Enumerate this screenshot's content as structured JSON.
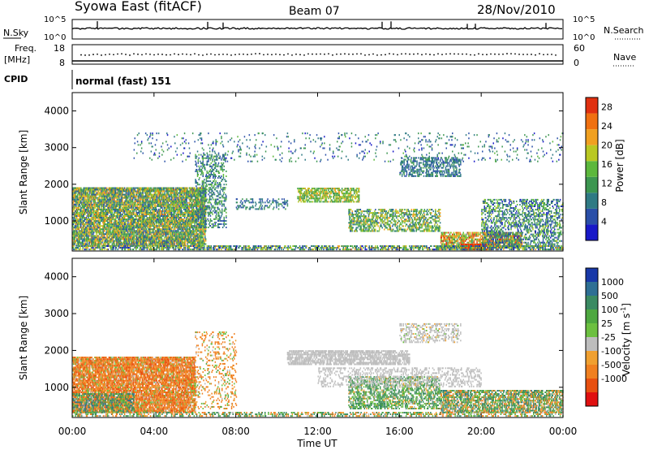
{
  "header": {
    "station": "Syowa East (fitACF)",
    "beam": "Beam 07",
    "date": "28/Nov/2010"
  },
  "sky_panel": {
    "left_label": "N.Sky",
    "right_label": "N.Search",
    "left_ticks": [
      "10^5",
      "10^0"
    ],
    "right_ticks": [
      "10^5",
      "10^0"
    ]
  },
  "freq_panel": {
    "label_1": "Freq.",
    "label_2": "[MHz]",
    "left_ticks": [
      "18",
      "8"
    ],
    "right_ticks": [
      "60",
      "0"
    ],
    "right_label": "Nave"
  },
  "cpid_panel": {
    "label": "CPID",
    "text": "normal (fast) 151"
  },
  "x_axis": {
    "title": "Time UT",
    "ticks": [
      "00:00",
      "04:00",
      "08:00",
      "12:00",
      "16:00",
      "20:00",
      "00:00"
    ]
  },
  "colors": {
    "power": [
      "#1818c8",
      "#2a4fa8",
      "#2f7a84",
      "#3c9650",
      "#5cb83c",
      "#b9c822",
      "#f0a020",
      "#f07010",
      "#e03010"
    ],
    "velocity_pos": [
      "#1838a8",
      "#2e6f94",
      "#3a8a62",
      "#4ea840",
      "#6cc040"
    ],
    "velocity_neutral": "#bdbdbd",
    "velocity_neg": [
      "#f0a030",
      "#f08020",
      "#e85010",
      "#e01010"
    ]
  },
  "chart_data": [
    {
      "type": "heatmap",
      "name": "power",
      "ylabel": "Slant Range [km]",
      "yticks": [
        1000,
        2000,
        3000,
        4000
      ],
      "ylim": [
        180,
        4500
      ],
      "xlim_hours": [
        0,
        24
      ],
      "colorbar_label": "Power [dB]",
      "colorbar_ticks": [
        "4",
        "8",
        "12",
        "16",
        "20",
        "24",
        "28"
      ],
      "colorbar_range": [
        0,
        30
      ],
      "scatter_regions": [
        {
          "t0": 0.0,
          "t1": 6.5,
          "r0": 300,
          "r1": 1900,
          "value": 14,
          "spread": 10,
          "density": 0.75
        },
        {
          "t0": 6.0,
          "t1": 7.5,
          "r0": 800,
          "r1": 2800,
          "value": 10,
          "spread": 6,
          "density": 0.3
        },
        {
          "t0": 8.0,
          "t1": 10.5,
          "r0": 1300,
          "r1": 1600,
          "value": 8,
          "spread": 4,
          "density": 0.25
        },
        {
          "t0": 11.0,
          "t1": 14.0,
          "r0": 1500,
          "r1": 1900,
          "value": 16,
          "spread": 6,
          "density": 0.55
        },
        {
          "t0": 13.5,
          "t1": 18.0,
          "r0": 700,
          "r1": 1300,
          "value": 14,
          "spread": 8,
          "density": 0.45
        },
        {
          "t0": 16.0,
          "t1": 19.0,
          "r0": 2200,
          "r1": 2700,
          "value": 8,
          "spread": 4,
          "density": 0.4
        },
        {
          "t0": 18.0,
          "t1": 22.0,
          "r0": 250,
          "r1": 700,
          "value": 20,
          "spread": 10,
          "density": 0.6
        },
        {
          "t0": 19.0,
          "t1": 20.5,
          "r0": 200,
          "r1": 350,
          "value": 28,
          "spread": 3,
          "density": 0.9
        },
        {
          "t0": 20.0,
          "t1": 24.0,
          "r0": 250,
          "r1": 1600,
          "value": 10,
          "spread": 8,
          "density": 0.35
        },
        {
          "t0": 0.0,
          "t1": 24.0,
          "r0": 200,
          "r1": 300,
          "value": 12,
          "spread": 10,
          "density": 0.5
        },
        {
          "t0": 3.0,
          "t1": 24.0,
          "r0": 2600,
          "r1": 3400,
          "value": 8,
          "spread": 6,
          "density": 0.05
        }
      ]
    },
    {
      "type": "heatmap",
      "name": "velocity",
      "ylabel": "Slant Range [km]",
      "yticks": [
        1000,
        2000,
        3000,
        4000
      ],
      "ylim": [
        180,
        4500
      ],
      "xlim_hours": [
        0,
        24
      ],
      "colorbar_label": "Velocity [m s-1]",
      "colorbar_ticks": [
        "1000",
        "500",
        "100",
        "25",
        "-25",
        "-100",
        "-500",
        "-1000"
      ],
      "scatter_regions": [
        {
          "t0": 0.0,
          "t1": 6.0,
          "r0": 300,
          "r1": 1800,
          "value": -300,
          "spread": 400,
          "density": 0.75
        },
        {
          "t0": 0.0,
          "t1": 3.0,
          "r0": 300,
          "r1": 800,
          "value": 300,
          "spread": 300,
          "density": 0.35
        },
        {
          "t0": 6.0,
          "t1": 8.0,
          "r0": 400,
          "r1": 2500,
          "value": -150,
          "spread": 300,
          "density": 0.15
        },
        {
          "t0": 10.5,
          "t1": 16.5,
          "r0": 1600,
          "r1": 2000,
          "value": 0,
          "spread": 20,
          "density": 0.6
        },
        {
          "t0": 13.5,
          "t1": 18.0,
          "r0": 400,
          "r1": 1300,
          "value": 200,
          "spread": 300,
          "density": 0.45
        },
        {
          "t0": 18.0,
          "t1": 24.0,
          "r0": 300,
          "r1": 900,
          "value": 150,
          "spread": 400,
          "density": 0.6
        },
        {
          "t0": 12.0,
          "t1": 20.0,
          "r0": 1000,
          "r1": 1500,
          "value": 0,
          "spread": 20,
          "density": 0.25
        },
        {
          "t0": 16.0,
          "t1": 19.0,
          "r0": 2200,
          "r1": 2700,
          "value": 0,
          "spread": 30,
          "density": 0.3
        },
        {
          "t0": 0.0,
          "t1": 24.0,
          "r0": 200,
          "r1": 300,
          "value": 100,
          "spread": 400,
          "density": 0.35
        }
      ]
    }
  ]
}
